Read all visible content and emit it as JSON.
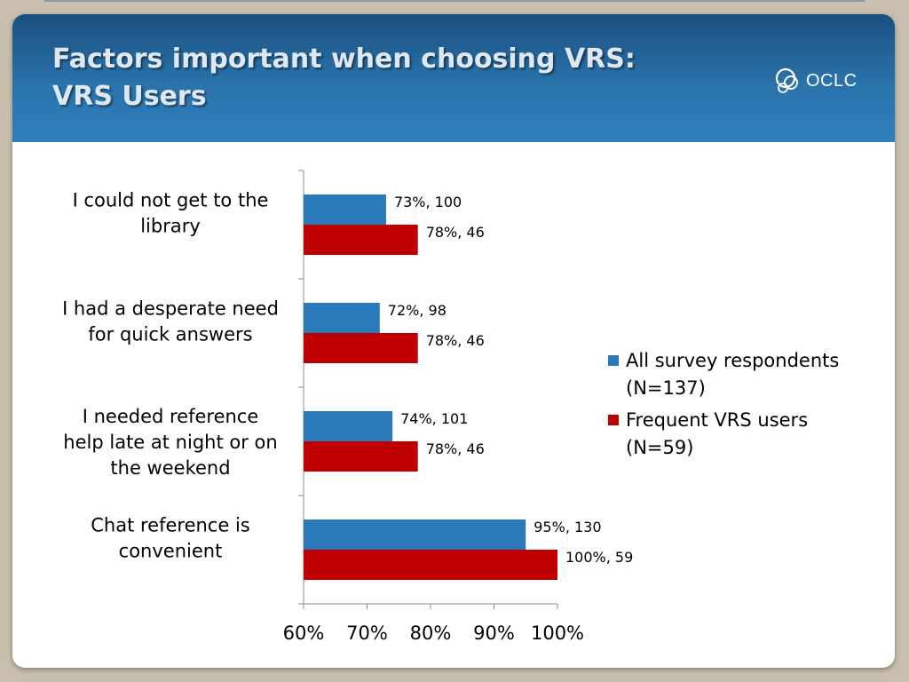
{
  "title": {
    "line1": "Factors important when choosing VRS:",
    "line2": "VRS Users"
  },
  "logo": {
    "text": "OCLC"
  },
  "colors": {
    "series_all": "#2a7ab9",
    "series_frequent": "#c00000",
    "header_top": "#1b4f7f",
    "header_bottom": "#2f7fbc"
  },
  "chart_data": {
    "type": "bar",
    "orientation": "horizontal",
    "categories": [
      [
        "I could not get to the",
        "library"
      ],
      [
        "I had a desperate need",
        "for quick answers"
      ],
      [
        "I needed reference",
        "help late at night or on",
        "the weekend"
      ],
      [
        "Chat reference is",
        "convenient"
      ]
    ],
    "series": [
      {
        "name": "All survey respondents (N=137)",
        "legend_lines": [
          "All survey respondents",
          "(N=137)"
        ],
        "values": [
          73,
          72,
          74,
          95
        ],
        "labels": [
          "73%, 100",
          "72%, 98",
          "74%, 101",
          "95%, 130"
        ]
      },
      {
        "name": "Frequent VRS users (N=59)",
        "legend_lines": [
          "Frequent VRS users",
          "(N=59)"
        ],
        "values": [
          78,
          78,
          78,
          100
        ],
        "labels": [
          "78%, 46",
          "78%, 46",
          "78%, 46",
          "100%, 59"
        ]
      }
    ],
    "xlim": [
      60,
      100
    ],
    "xticks": [
      60,
      70,
      80,
      90,
      100
    ],
    "xtick_labels": [
      "60%",
      "70%",
      "80%",
      "90%",
      "100%"
    ],
    "legend_position": "right"
  }
}
